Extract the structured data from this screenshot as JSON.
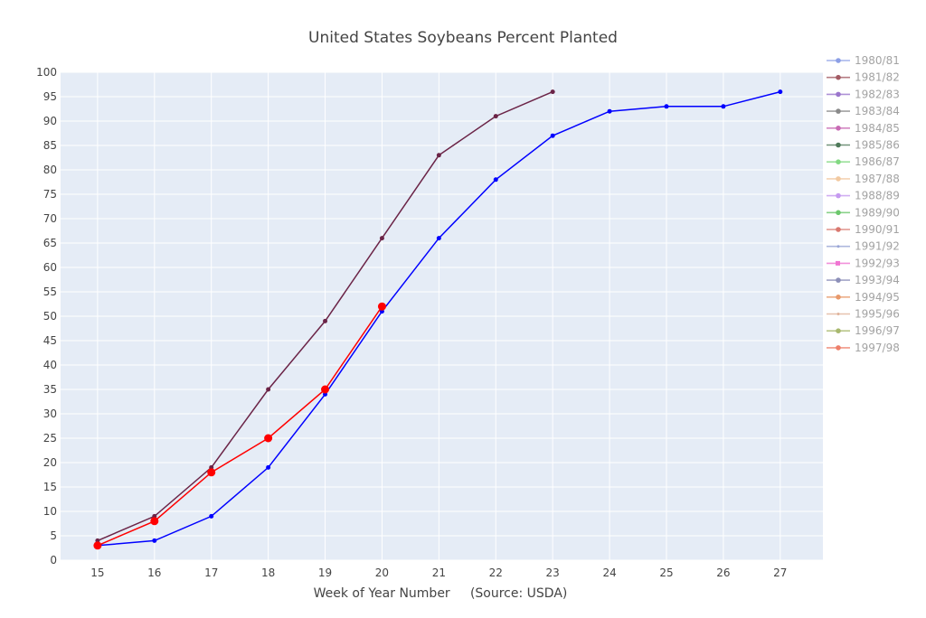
{
  "chart_data": {
    "type": "line",
    "title": "United States Soybeans Percent Planted",
    "xlabel": "Week of Year Number     (Source: USDA)",
    "ylabel": "",
    "xlim": [
      14.35,
      27.75
    ],
    "ylim": [
      0,
      100
    ],
    "x_ticks": [
      15,
      16,
      17,
      18,
      19,
      20,
      21,
      22,
      23,
      24,
      25,
      26,
      27
    ],
    "y_ticks": [
      0,
      5,
      10,
      15,
      20,
      25,
      30,
      35,
      40,
      45,
      50,
      55,
      60,
      65,
      70,
      75,
      80,
      85,
      90,
      95,
      100
    ],
    "grid": true,
    "legend_position": "right",
    "plot_background": "#e5ecf6",
    "series": [
      {
        "name": "1980/81",
        "color": "#8c9fe6",
        "legend_marker": "circle",
        "visible": false,
        "points": []
      },
      {
        "name": "1981/82",
        "color": "#a35b64",
        "legend_marker": "circle",
        "visible": false,
        "points": []
      },
      {
        "name": "1982/83",
        "color": "#9b76cc",
        "legend_marker": "circle",
        "visible": false,
        "points": []
      },
      {
        "name": "1983/84",
        "color": "#8a8a8a",
        "legend_marker": "circle",
        "visible": false,
        "points": []
      },
      {
        "name": "1984/85",
        "color": "#c86ab4",
        "legend_marker": "circle",
        "visible": false,
        "points": []
      },
      {
        "name": "1985/86",
        "color": "#4f7a5a",
        "legend_marker": "circle",
        "visible": false,
        "points": []
      },
      {
        "name": "1986/87",
        "color": "#82d982",
        "legend_marker": "circle",
        "visible": false,
        "points": []
      },
      {
        "name": "1987/88",
        "color": "#f2c9a0",
        "legend_marker": "circle",
        "visible": false,
        "points": []
      },
      {
        "name": "1988/89",
        "color": "#c59af0",
        "legend_marker": "circle",
        "visible": false,
        "points": []
      },
      {
        "name": "1989/90",
        "color": "#6cc76c",
        "legend_marker": "circle",
        "visible": false,
        "points": []
      },
      {
        "name": "1990/91",
        "color": "#d9786f",
        "legend_marker": "circle",
        "visible": false,
        "points": []
      },
      {
        "name": "1991/92",
        "color": "#9aa6d6",
        "legend_marker": "dot",
        "visible": false,
        "points": []
      },
      {
        "name": "1992/93",
        "color": "#f075d2",
        "legend_marker": "square",
        "visible": false,
        "points": []
      },
      {
        "name": "1993/94",
        "color": "#8c8fb8",
        "legend_marker": "circle",
        "visible": false,
        "points": []
      },
      {
        "name": "1994/95",
        "color": "#e8996b",
        "legend_marker": "circle",
        "visible": false,
        "points": []
      },
      {
        "name": "1995/96",
        "color": "#e0b39b",
        "legend_marker": "dot",
        "visible": false,
        "points": []
      },
      {
        "name": "1996/97",
        "color": "#a8b86e",
        "legend_marker": "circle",
        "visible": false,
        "points": []
      },
      {
        "name": "1997/98",
        "color": "#ee7f6a",
        "legend_marker": "circle",
        "visible": false,
        "points": []
      },
      {
        "name": "",
        "color": "#0000ff",
        "marker_size": 2.5,
        "line_width": 1.5,
        "visible": true,
        "points": [
          [
            15,
            3
          ],
          [
            16,
            4
          ],
          [
            17,
            9
          ],
          [
            18,
            19
          ],
          [
            19,
            34
          ],
          [
            20,
            51
          ],
          [
            21,
            66
          ],
          [
            22,
            78
          ],
          [
            23,
            87
          ],
          [
            24,
            92
          ],
          [
            25,
            93
          ],
          [
            26,
            93
          ],
          [
            27,
            96
          ]
        ]
      },
      {
        "name": "",
        "color": "#6b2447",
        "marker_size": 2.5,
        "line_width": 1.5,
        "visible": true,
        "points": [
          [
            15,
            4
          ],
          [
            16,
            9
          ],
          [
            17,
            19
          ],
          [
            18,
            35
          ],
          [
            19,
            49
          ],
          [
            20,
            66
          ],
          [
            21,
            83
          ],
          [
            22,
            91
          ],
          [
            23,
            96
          ]
        ]
      },
      {
        "name": "",
        "color": "#ff0000",
        "marker_size": 4.5,
        "line_width": 1.5,
        "visible": true,
        "points": [
          [
            15,
            3
          ],
          [
            16,
            8
          ],
          [
            17,
            18
          ],
          [
            18,
            25
          ],
          [
            19,
            35
          ],
          [
            20,
            52
          ]
        ]
      }
    ]
  }
}
